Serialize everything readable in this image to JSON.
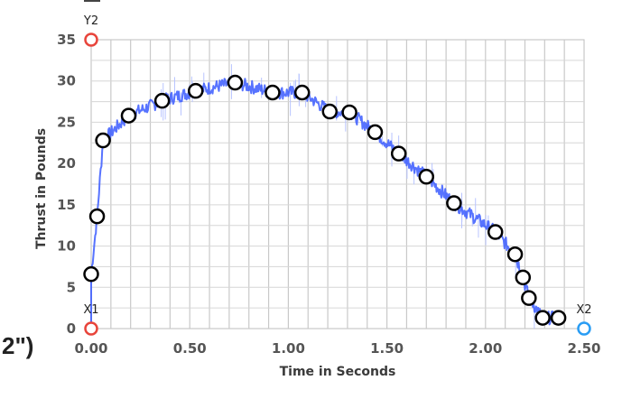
{
  "side_label": "2\")",
  "chart_data": {
    "type": "line+scatter",
    "title": "",
    "xlabel": "Time in Seconds",
    "ylabel": "Thrust in Pounds",
    "xlim": [
      0,
      2.5
    ],
    "ylim": [
      0,
      35
    ],
    "x_ticks": [
      0,
      0.5,
      1.0,
      1.5,
      2.0,
      2.5
    ],
    "x_tick_labels": [
      "0.00",
      "0.50",
      "1.00",
      "1.50",
      "2.00",
      "2.50"
    ],
    "y_ticks": [
      0,
      5,
      10,
      15,
      20,
      25,
      30,
      35
    ],
    "y_tick_labels": [
      "0",
      "5",
      "10",
      "15",
      "20",
      "25",
      "30",
      "35"
    ],
    "grid": true,
    "line_color": "#3a5bff",
    "points": [
      {
        "x": 0.0,
        "y": 6.6
      },
      {
        "x": 0.03,
        "y": 13.6
      },
      {
        "x": 0.06,
        "y": 22.8
      },
      {
        "x": 0.19,
        "y": 25.8
      },
      {
        "x": 0.36,
        "y": 27.6
      },
      {
        "x": 0.53,
        "y": 28.8
      },
      {
        "x": 0.73,
        "y": 29.8
      },
      {
        "x": 0.92,
        "y": 28.6
      },
      {
        "x": 1.07,
        "y": 28.6
      },
      {
        "x": 1.21,
        "y": 26.3
      },
      {
        "x": 1.31,
        "y": 26.2
      },
      {
        "x": 1.44,
        "y": 23.8
      },
      {
        "x": 1.56,
        "y": 21.2
      },
      {
        "x": 1.7,
        "y": 18.4
      },
      {
        "x": 1.84,
        "y": 15.2
      },
      {
        "x": 2.05,
        "y": 11.7
      },
      {
        "x": 2.15,
        "y": 9.0
      },
      {
        "x": 2.19,
        "y": 6.2
      },
      {
        "x": 2.22,
        "y": 3.7
      },
      {
        "x": 2.29,
        "y": 1.3
      },
      {
        "x": 2.37,
        "y": 1.3
      }
    ],
    "markers": [
      {
        "label": "Y2",
        "x": 0.0,
        "y": 35,
        "color": "#e8453c"
      },
      {
        "label": "X1",
        "x": 0.0,
        "y": 0,
        "color": "#e8453c"
      },
      {
        "label": "X2",
        "x": 2.5,
        "y": 0,
        "color": "#2a9df4"
      }
    ]
  }
}
